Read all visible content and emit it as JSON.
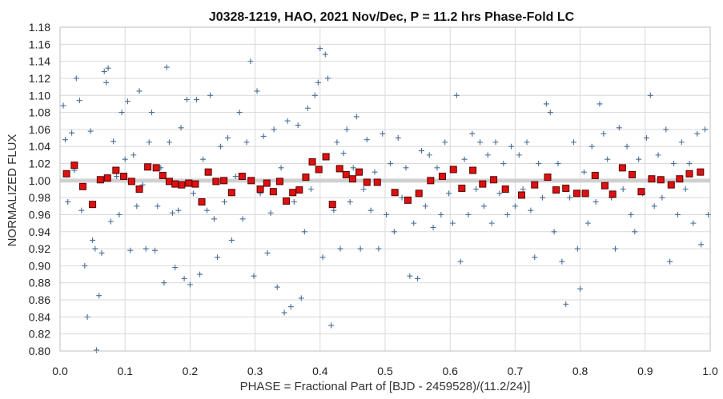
{
  "chart_data": {
    "type": "scatter",
    "title": "J0328-1219, HAO, 2021 Nov/Dec, P = 11.2 hrs Phase-Fold LC",
    "xlabel": "PHASE = Fractional Part of [BJD - 2459528)/(11.2/24)]",
    "ylabel": "NORMALIZED FLUX",
    "xlim": [
      0.0,
      1.0
    ],
    "ylim": [
      0.8,
      1.18
    ],
    "x_ticks": [
      "0.0",
      "0.1",
      "0.2",
      "0.3",
      "0.4",
      "0.5",
      "0.6",
      "0.7",
      "0.8",
      "0.9",
      "1.0"
    ],
    "y_ticks": [
      "0.80",
      "0.82",
      "0.84",
      "0.86",
      "0.88",
      "0.90",
      "0.92",
      "0.94",
      "0.96",
      "0.98",
      "1.00",
      "1.02",
      "1.04",
      "1.06",
      "1.08",
      "1.10",
      "1.12",
      "1.14",
      "1.16",
      "1.18"
    ],
    "grid": true,
    "colors": {
      "raw_points": "#4a6f95",
      "binned_fill": "#dd1111",
      "binned_edge": "#550000",
      "trend_line": "#c8c8c8",
      "grid": "#d9d9d9"
    },
    "series": [
      {
        "marker": "plus",
        "points": [
          [
            0.005,
            1.088
          ],
          [
            0.008,
            1.048
          ],
          [
            0.012,
            0.975
          ],
          [
            0.018,
            1.056
          ],
          [
            0.022,
            1.012
          ],
          [
            0.025,
            1.12
          ],
          [
            0.03,
            1.094
          ],
          [
            0.033,
            0.965
          ],
          [
            0.038,
            0.9
          ],
          [
            0.042,
            0.84
          ],
          [
            0.047,
            1.058
          ],
          [
            0.05,
            0.93
          ],
          [
            0.054,
            0.92
          ],
          [
            0.056,
            0.801
          ],
          [
            0.06,
            0.865
          ],
          [
            0.064,
            0.915
          ],
          [
            0.068,
            1.128
          ],
          [
            0.071,
            1.115
          ],
          [
            0.074,
            1.132
          ],
          [
            0.078,
            0.952
          ],
          [
            0.082,
            1.046
          ],
          [
            0.087,
            1.005
          ],
          [
            0.091,
            0.96
          ],
          [
            0.095,
            1.08
          ],
          [
            0.1,
            1.025
          ],
          [
            0.104,
            1.093
          ],
          [
            0.108,
            0.918
          ],
          [
            0.113,
            1.03
          ],
          [
            0.118,
            0.97
          ],
          [
            0.122,
            1.105
          ],
          [
            0.127,
            0.995
          ],
          [
            0.132,
            0.92
          ],
          [
            0.137,
            1.045
          ],
          [
            0.141,
            1.08
          ],
          [
            0.146,
            0.918
          ],
          [
            0.15,
            0.97
          ],
          [
            0.155,
            1.015
          ],
          [
            0.16,
            0.88
          ],
          [
            0.164,
            1.133
          ],
          [
            0.168,
            1.045
          ],
          [
            0.173,
            0.962
          ],
          [
            0.177,
            0.898
          ],
          [
            0.182,
            0.965
          ],
          [
            0.186,
            1.062
          ],
          [
            0.191,
            0.885
          ],
          [
            0.195,
            1.095
          ],
          [
            0.2,
            0.878
          ],
          [
            0.205,
            0.985
          ],
          [
            0.21,
            1.095
          ],
          [
            0.215,
            0.89
          ],
          [
            0.22,
            1.025
          ],
          [
            0.226,
            0.965
          ],
          [
            0.231,
            1.1
          ],
          [
            0.237,
            0.955
          ],
          [
            0.242,
            0.91
          ],
          [
            0.247,
            1.04
          ],
          [
            0.253,
            0.975
          ],
          [
            0.258,
            1.05
          ],
          [
            0.264,
            0.93
          ],
          [
            0.27,
            1.005
          ],
          [
            0.276,
            1.08
          ],
          [
            0.281,
            0.955
          ],
          [
            0.287,
            1.045
          ],
          [
            0.293,
            1.14
          ],
          [
            0.298,
            0.888
          ],
          [
            0.303,
            1.105
          ],
          [
            0.308,
            0.985
          ],
          [
            0.313,
            1.052
          ],
          [
            0.319,
            0.915
          ],
          [
            0.324,
            0.962
          ],
          [
            0.329,
            1.06
          ],
          [
            0.334,
            0.875
          ],
          [
            0.34,
            1.015
          ],
          [
            0.345,
            0.845
          ],
          [
            0.35,
            1.07
          ],
          [
            0.355,
            0.852
          ],
          [
            0.36,
            0.975
          ],
          [
            0.366,
            1.065
          ],
          [
            0.371,
            0.862
          ],
          [
            0.376,
            0.94
          ],
          [
            0.381,
            1.085
          ],
          [
            0.386,
            0.99
          ],
          [
            0.392,
            1.1
          ],
          [
            0.397,
            1.115
          ],
          [
            0.4,
            1.155
          ],
          [
            0.404,
            0.91
          ],
          [
            0.408,
            1.148
          ],
          [
            0.412,
            1.12
          ],
          [
            0.417,
            0.83
          ],
          [
            0.421,
            0.965
          ],
          [
            0.426,
            1.045
          ],
          [
            0.431,
            0.92
          ],
          [
            0.436,
            1.032
          ],
          [
            0.441,
            1.06
          ],
          [
            0.446,
            0.975
          ],
          [
            0.451,
            1.015
          ],
          [
            0.456,
            1.075
          ],
          [
            0.462,
            0.92
          ],
          [
            0.467,
            0.99
          ],
          [
            0.472,
            1.048
          ],
          [
            0.478,
            0.965
          ],
          [
            0.484,
            1.01
          ],
          [
            0.49,
            0.92
          ],
          [
            0.496,
            1.055
          ],
          [
            0.502,
            0.96
          ],
          [
            0.508,
            1.02
          ],
          [
            0.514,
            0.94
          ],
          [
            0.52,
            1.05
          ],
          [
            0.526,
            0.98
          ],
          [
            0.532,
            1.015
          ],
          [
            0.538,
            0.888
          ],
          [
            0.544,
            0.95
          ],
          [
            0.55,
            0.885
          ],
          [
            0.556,
            1.035
          ],
          [
            0.562,
            0.97
          ],
          [
            0.568,
            1.03
          ],
          [
            0.574,
            0.945
          ],
          [
            0.58,
            1.015
          ],
          [
            0.586,
            0.96
          ],
          [
            0.592,
            1.045
          ],
          [
            0.598,
            0.985
          ],
          [
            0.604,
            0.95
          ],
          [
            0.61,
            1.1
          ],
          [
            0.616,
            0.905
          ],
          [
            0.622,
            1.025
          ],
          [
            0.628,
            0.96
          ],
          [
            0.634,
            1.055
          ],
          [
            0.64,
            0.99
          ],
          [
            0.646,
            1.045
          ],
          [
            0.652,
            0.97
          ],
          [
            0.658,
            1.03
          ],
          [
            0.664,
            0.95
          ],
          [
            0.67,
            1.045
          ],
          [
            0.676,
            0.985
          ],
          [
            0.682,
            1.02
          ],
          [
            0.688,
            0.96
          ],
          [
            0.694,
            1.04
          ],
          [
            0.7,
            0.97
          ],
          [
            0.706,
            1.03
          ],
          [
            0.712,
            0.99
          ],
          [
            0.718,
            1.045
          ],
          [
            0.724,
            0.965
          ],
          [
            0.73,
            0.91
          ],
          [
            0.736,
            1.02
          ],
          [
            0.742,
            0.98
          ],
          [
            0.748,
            1.09
          ],
          [
            0.754,
            1.08
          ],
          [
            0.76,
            0.94
          ],
          [
            0.766,
            1.02
          ],
          [
            0.772,
            0.905
          ],
          [
            0.778,
            0.855
          ],
          [
            0.784,
            0.98
          ],
          [
            0.79,
            1.045
          ],
          [
            0.796,
            0.92
          ],
          [
            0.8,
            0.873
          ],
          [
            0.806,
            1.01
          ],
          [
            0.812,
            0.95
          ],
          [
            0.818,
            1.04
          ],
          [
            0.824,
            0.975
          ],
          [
            0.83,
            1.09
          ],
          [
            0.836,
            1.055
          ],
          [
            0.842,
            1.025
          ],
          [
            0.848,
            0.98
          ],
          [
            0.854,
            0.92
          ],
          [
            0.86,
            1.062
          ],
          [
            0.866,
            0.99
          ],
          [
            0.872,
            1.04
          ],
          [
            0.878,
            0.96
          ],
          [
            0.884,
            0.94
          ],
          [
            0.89,
            1.025
          ],
          [
            0.896,
            0.985
          ],
          [
            0.902,
            1.05
          ],
          [
            0.908,
            1.1
          ],
          [
            0.914,
            0.97
          ],
          [
            0.92,
            1.03
          ],
          [
            0.926,
            0.98
          ],
          [
            0.932,
            1.06
          ],
          [
            0.938,
            0.905
          ],
          [
            0.944,
            1.02
          ],
          [
            0.95,
            0.96
          ],
          [
            0.956,
            1.045
          ],
          [
            0.962,
            0.99
          ],
          [
            0.968,
            1.02
          ],
          [
            0.974,
            0.95
          ],
          [
            0.98,
            1.055
          ],
          [
            0.986,
            0.925
          ],
          [
            0.992,
            1.06
          ],
          [
            0.997,
            0.96
          ]
        ]
      },
      {
        "marker": "square",
        "points": [
          [
            0.01,
            1.008
          ],
          [
            0.022,
            1.018
          ],
          [
            0.035,
            0.993
          ],
          [
            0.05,
            0.972
          ],
          [
            0.062,
            1.001
          ],
          [
            0.073,
            1.003
          ],
          [
            0.086,
            1.012
          ],
          [
            0.098,
            1.005
          ],
          [
            0.11,
            0.999
          ],
          [
            0.122,
            0.99
          ],
          [
            0.135,
            1.016
          ],
          [
            0.148,
            1.015
          ],
          [
            0.158,
            1.006
          ],
          [
            0.168,
            0.999
          ],
          [
            0.177,
            0.996
          ],
          [
            0.187,
            0.995
          ],
          [
            0.198,
            0.997
          ],
          [
            0.208,
            0.996
          ],
          [
            0.218,
            0.975
          ],
          [
            0.228,
            1.01
          ],
          [
            0.24,
            0.999
          ],
          [
            0.252,
            1.0
          ],
          [
            0.264,
            0.986
          ],
          [
            0.28,
            1.005
          ],
          [
            0.294,
            1.0
          ],
          [
            0.308,
            0.99
          ],
          [
            0.318,
            0.997
          ],
          [
            0.328,
            0.987
          ],
          [
            0.338,
            0.999
          ],
          [
            0.348,
            0.976
          ],
          [
            0.358,
            0.986
          ],
          [
            0.368,
            0.989
          ],
          [
            0.378,
            1.004
          ],
          [
            0.388,
            1.022
          ],
          [
            0.398,
            1.013
          ],
          [
            0.409,
            1.028
          ],
          [
            0.419,
            0.972
          ],
          [
            0.43,
            1.014
          ],
          [
            0.44,
            1.007
          ],
          [
            0.45,
            1.002
          ],
          [
            0.46,
            1.01
          ],
          [
            0.472,
            0.998
          ],
          [
            0.488,
            0.998
          ],
          [
            0.515,
            0.986
          ],
          [
            0.535,
            0.977
          ],
          [
            0.552,
            0.985
          ],
          [
            0.57,
            1.0
          ],
          [
            0.588,
            1.005
          ],
          [
            0.605,
            1.013
          ],
          [
            0.618,
            0.991
          ],
          [
            0.635,
            1.012
          ],
          [
            0.65,
            0.996
          ],
          [
            0.667,
            1.001
          ],
          [
            0.685,
            0.99
          ],
          [
            0.71,
            0.983
          ],
          [
            0.73,
            0.995
          ],
          [
            0.75,
            1.004
          ],
          [
            0.763,
            0.989
          ],
          [
            0.778,
            0.991
          ],
          [
            0.795,
            0.985
          ],
          [
            0.808,
            0.985
          ],
          [
            0.823,
            1.006
          ],
          [
            0.838,
            0.994
          ],
          [
            0.85,
            0.984
          ],
          [
            0.865,
            1.015
          ],
          [
            0.88,
            1.007
          ],
          [
            0.894,
            0.987
          ],
          [
            0.91,
            1.002
          ],
          [
            0.924,
            1.001
          ],
          [
            0.94,
            0.995
          ],
          [
            0.953,
            1.002
          ],
          [
            0.968,
            1.008
          ],
          [
            0.985,
            1.01
          ]
        ]
      }
    ]
  }
}
